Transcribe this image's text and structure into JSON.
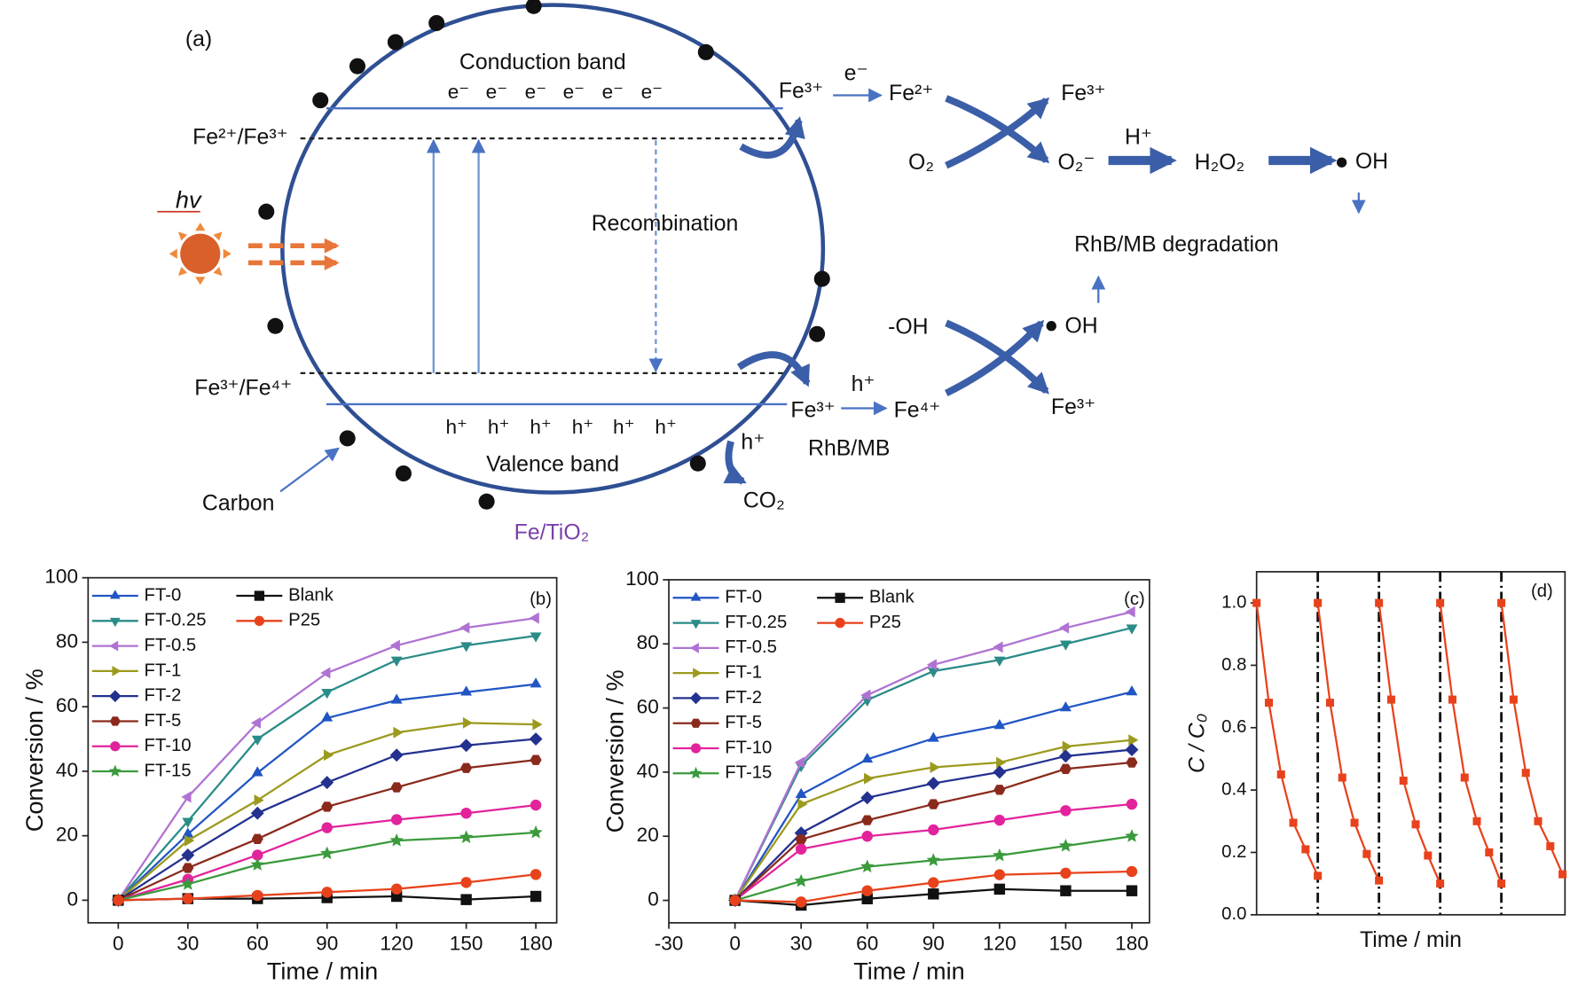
{
  "diagram": {
    "labels": [
      "(a)",
      "Conduction band",
      "Fe²⁺/Fe³⁺",
      "hv",
      "Recombination",
      "Fe³⁺/Fe⁴⁺",
      "Valence band",
      "Carbon",
      "Fe/TiO₂",
      "Fe³⁺",
      "e⁻",
      "Fe²⁺",
      "Fe³⁺",
      "O₂",
      "O₂⁻",
      "H⁺",
      "H₂O₂",
      "OH",
      "RhB/MB degradation",
      "-OH",
      "OH",
      "h⁺",
      "Fe³⁺",
      "Fe⁴⁺",
      "Fe³⁺",
      "h⁺",
      "RhB/MB",
      "CO₂"
    ],
    "electrons": [
      "e⁻",
      "e⁻",
      "e⁻",
      "e⁻",
      "e⁻",
      "e⁻"
    ],
    "holes": [
      "h⁺",
      "h⁺",
      "h⁺",
      "h⁺",
      "h⁺",
      "h⁺"
    ]
  },
  "chart_data": [
    {
      "type": "line",
      "label": "(b)",
      "xlabel": "Time / min",
      "ylabel": "Conversion / %",
      "x": [
        0,
        30,
        60,
        90,
        120,
        150,
        180
      ],
      "xlim": [
        -13,
        189
      ],
      "ylim": [
        -7,
        100
      ],
      "xticks": [
        0,
        30,
        60,
        90,
        120,
        150,
        180
      ],
      "yticks": [
        0,
        20,
        40,
        60,
        80,
        100
      ],
      "legend": "upper left",
      "series": [
        {
          "name": "FT-0",
          "color": "#2155c4",
          "marker": "triangle-up",
          "values": [
            0,
            20.5,
            39.5,
            56.5,
            62,
            64.5,
            67
          ]
        },
        {
          "name": "FT-0.25",
          "color": "#2a8c88",
          "marker": "triangle-down",
          "values": [
            0,
            24.5,
            50,
            64.5,
            74.5,
            79,
            82
          ]
        },
        {
          "name": "FT-0.5",
          "color": "#b072d2",
          "marker": "triangle-left",
          "values": [
            0,
            32,
            55,
            70.5,
            79,
            84.5,
            87.5
          ]
        },
        {
          "name": "FT-1",
          "color": "#9c9a1e",
          "marker": "triangle-right",
          "values": [
            0,
            18.5,
            31,
            45,
            52,
            55,
            54.5
          ]
        },
        {
          "name": "FT-2",
          "color": "#23318f",
          "marker": "diamond",
          "values": [
            0,
            14,
            27,
            36.5,
            45,
            48,
            50
          ]
        },
        {
          "name": "FT-5",
          "color": "#8a2a1c",
          "marker": "hexagon",
          "values": [
            0,
            10,
            19,
            29,
            35,
            41,
            43.5
          ]
        },
        {
          "name": "FT-10",
          "color": "#e2239c",
          "marker": "circle",
          "values": [
            0,
            6.5,
            14,
            22.5,
            25,
            27,
            29.5
          ]
        },
        {
          "name": "FT-15",
          "color": "#3a9a3c",
          "marker": "star",
          "values": [
            0,
            5,
            11,
            14.5,
            18.5,
            19.5,
            21
          ]
        },
        {
          "name": "Blank",
          "color": "#111111",
          "marker": "square",
          "values": [
            0,
            0.5,
            0.5,
            0.8,
            1.2,
            0.2,
            1.2
          ]
        },
        {
          "name": "P25",
          "color": "#e8421c",
          "marker": "circle",
          "values": [
            0,
            0.5,
            1.5,
            2.5,
            3.5,
            5.5,
            8
          ]
        }
      ]
    },
    {
      "type": "line",
      "label": "(c)",
      "xlabel": "Time / min",
      "ylabel": "Conversion / %",
      "x": [
        0,
        30,
        60,
        90,
        120,
        150,
        180
      ],
      "xlim": [
        -30,
        188
      ],
      "ylim": [
        -7,
        100
      ],
      "xticks": [
        -30,
        0,
        30,
        60,
        90,
        120,
        150,
        180
      ],
      "yticks": [
        0,
        20,
        40,
        60,
        80,
        100
      ],
      "legend": "upper left",
      "series": [
        {
          "name": "FT-0",
          "color": "#2155c4",
          "marker": "triangle-up",
          "values": [
            0,
            33,
            44,
            50.5,
            54.5,
            60,
            65
          ]
        },
        {
          "name": "FT-0.25",
          "color": "#2a8c88",
          "marker": "triangle-down",
          "values": [
            0,
            42,
            62.5,
            71.5,
            75,
            80,
            85
          ]
        },
        {
          "name": "FT-0.5",
          "color": "#b072d2",
          "marker": "triangle-left",
          "values": [
            0,
            43,
            64,
            73.5,
            79,
            85,
            90
          ]
        },
        {
          "name": "FT-1",
          "color": "#9c9a1e",
          "marker": "triangle-right",
          "values": [
            0,
            30,
            38,
            41.5,
            43,
            48,
            50
          ]
        },
        {
          "name": "FT-2",
          "color": "#23318f",
          "marker": "diamond",
          "values": [
            0,
            21,
            32,
            36.5,
            40,
            45,
            47
          ]
        },
        {
          "name": "FT-5",
          "color": "#8a2a1c",
          "marker": "hexagon",
          "values": [
            0,
            19,
            25,
            30,
            34.5,
            41,
            43
          ]
        },
        {
          "name": "FT-10",
          "color": "#e2239c",
          "marker": "circle",
          "values": [
            0,
            16,
            20,
            22,
            25,
            28,
            30
          ]
        },
        {
          "name": "FT-15",
          "color": "#3a9a3c",
          "marker": "star",
          "values": [
            0,
            6,
            10.5,
            12.5,
            14,
            17,
            20
          ]
        },
        {
          "name": "Blank",
          "color": "#111111",
          "marker": "square",
          "values": [
            0,
            -1.5,
            0.5,
            2,
            3.5,
            3,
            3
          ]
        },
        {
          "name": "P25",
          "color": "#e8421c",
          "marker": "circle",
          "values": [
            0,
            -0.5,
            3,
            5.5,
            8,
            8.5,
            9
          ]
        }
      ]
    },
    {
      "type": "line",
      "label": "(d)",
      "xlabel": "Time / min",
      "ylabel": "C / C₀",
      "xlim": [
        0,
        25.2
      ],
      "ylim": [
        0,
        1.1
      ],
      "yticks": [
        {
          "value": 0,
          "label": "0.0"
        },
        0.2,
        0.4,
        0.6,
        0.8,
        {
          "value": 1,
          "label": "1.0"
        }
      ],
      "series": [
        {
          "color": "#e8421c",
          "marker": "square",
          "x": [
            0,
            1,
            2,
            3,
            4,
            5
          ],
          "values": [
            1,
            0.68,
            0.45,
            0.295,
            0.21,
            0.125
          ]
        },
        {
          "color": "#e8421c",
          "marker": "square",
          "x": [
            5,
            6,
            7,
            8,
            9,
            10
          ],
          "values": [
            1,
            0.68,
            0.44,
            0.295,
            0.195,
            0.11
          ]
        },
        {
          "color": "#e8421c",
          "marker": "square",
          "x": [
            10,
            11,
            12,
            13,
            14,
            15
          ],
          "values": [
            1,
            0.69,
            0.43,
            0.29,
            0.19,
            0.1
          ]
        },
        {
          "color": "#e8421c",
          "marker": "square",
          "x": [
            15,
            16,
            17,
            18,
            19,
            20
          ],
          "values": [
            1,
            0.69,
            0.44,
            0.3,
            0.2,
            0.1
          ]
        },
        {
          "color": "#e8421c",
          "marker": "square",
          "x": [
            20,
            21,
            22,
            23,
            24,
            25
          ],
          "values": [
            1,
            0.69,
            0.455,
            0.3,
            0.22,
            0.13
          ]
        }
      ]
    }
  ]
}
